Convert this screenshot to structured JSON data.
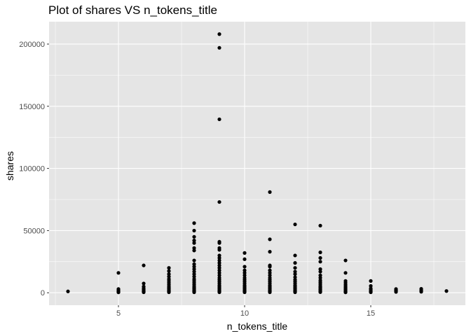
{
  "chart_data": {
    "type": "scatter",
    "title": "Plot of shares VS n_tokens_title",
    "xlabel": "n_tokens_title",
    "ylabel": "shares",
    "xlim": [
      2.25,
      18.75
    ],
    "ylim": [
      -10000,
      218000
    ],
    "x_ticks": [
      5,
      10,
      15
    ],
    "x_tick_labels": [
      "5",
      "10",
      "15"
    ],
    "x_minor_ticks": [
      2.5,
      7.5,
      12.5,
      17.5
    ],
    "y_ticks": [
      0,
      50000,
      100000,
      150000,
      200000
    ],
    "y_tick_labels": [
      "0",
      "50000",
      "100000",
      "150000",
      "200000"
    ],
    "y_minor_ticks": [
      25000,
      75000,
      125000,
      175000
    ],
    "grid": true,
    "legend": "none",
    "colors": {
      "panel": "#e5e5e5",
      "grid": "#ffffff",
      "point": "#000000"
    },
    "points": [
      [
        3,
        1100
      ],
      [
        5,
        16000
      ],
      [
        5,
        3000
      ],
      [
        5,
        2000
      ],
      [
        5,
        1200
      ],
      [
        5,
        800
      ],
      [
        5,
        300
      ],
      [
        6,
        22000
      ],
      [
        6,
        7500
      ],
      [
        6,
        5000
      ],
      [
        6,
        3500
      ],
      [
        6,
        2500
      ],
      [
        6,
        1800
      ],
      [
        6,
        1200
      ],
      [
        6,
        800
      ],
      [
        6,
        400
      ],
      [
        7,
        20000
      ],
      [
        7,
        17500
      ],
      [
        7,
        15000
      ],
      [
        7,
        13000
      ],
      [
        7,
        11000
      ],
      [
        7,
        9500
      ],
      [
        7,
        8000
      ],
      [
        7,
        6500
      ],
      [
        7,
        5000
      ],
      [
        7,
        4000
      ],
      [
        7,
        3000
      ],
      [
        7,
        2200
      ],
      [
        7,
        1500
      ],
      [
        7,
        900
      ],
      [
        7,
        400
      ],
      [
        8,
        56000
      ],
      [
        8,
        50000
      ],
      [
        8,
        45000
      ],
      [
        8,
        42000
      ],
      [
        8,
        40000
      ],
      [
        8,
        36000
      ],
      [
        8,
        34000
      ],
      [
        8,
        26000
      ],
      [
        8,
        23000
      ],
      [
        8,
        21000
      ],
      [
        8,
        19000
      ],
      [
        8,
        17000
      ],
      [
        8,
        15000
      ],
      [
        8,
        13000
      ],
      [
        8,
        11000
      ],
      [
        8,
        9500
      ],
      [
        8,
        8000
      ],
      [
        8,
        6500
      ],
      [
        8,
        5000
      ],
      [
        8,
        4000
      ],
      [
        8,
        3000
      ],
      [
        8,
        2200
      ],
      [
        8,
        1500
      ],
      [
        8,
        900
      ],
      [
        8,
        400
      ],
      [
        9,
        208000
      ],
      [
        9,
        197000
      ],
      [
        9,
        139500
      ],
      [
        9,
        73000
      ],
      [
        9,
        41000
      ],
      [
        9,
        40000
      ],
      [
        9,
        36000
      ],
      [
        9,
        34500
      ],
      [
        9,
        30000
      ],
      [
        9,
        28000
      ],
      [
        9,
        26000
      ],
      [
        9,
        24000
      ],
      [
        9,
        22000
      ],
      [
        9,
        20000
      ],
      [
        9,
        18000
      ],
      [
        9,
        16000
      ],
      [
        9,
        14000
      ],
      [
        9,
        12000
      ],
      [
        9,
        10500
      ],
      [
        9,
        9000
      ],
      [
        9,
        7500
      ],
      [
        9,
        6000
      ],
      [
        9,
        5000
      ],
      [
        9,
        4000
      ],
      [
        9,
        3000
      ],
      [
        9,
        2200
      ],
      [
        9,
        1500
      ],
      [
        9,
        900
      ],
      [
        9,
        400
      ],
      [
        10,
        32000
      ],
      [
        10,
        27000
      ],
      [
        10,
        21000
      ],
      [
        10,
        18000
      ],
      [
        10,
        16000
      ],
      [
        10,
        14000
      ],
      [
        10,
        12000
      ],
      [
        10,
        10500
      ],
      [
        10,
        9000
      ],
      [
        10,
        7500
      ],
      [
        10,
        6000
      ],
      [
        10,
        5000
      ],
      [
        10,
        4000
      ],
      [
        10,
        3000
      ],
      [
        10,
        2200
      ],
      [
        10,
        1500
      ],
      [
        10,
        900
      ],
      [
        10,
        400
      ],
      [
        11,
        81000
      ],
      [
        11,
        43000
      ],
      [
        11,
        33000
      ],
      [
        11,
        22000
      ],
      [
        11,
        21000
      ],
      [
        11,
        18000
      ],
      [
        11,
        16000
      ],
      [
        11,
        14000
      ],
      [
        11,
        12000
      ],
      [
        11,
        10500
      ],
      [
        11,
        9000
      ],
      [
        11,
        7500
      ],
      [
        11,
        6000
      ],
      [
        11,
        5000
      ],
      [
        11,
        4000
      ],
      [
        11,
        3000
      ],
      [
        11,
        2200
      ],
      [
        11,
        1500
      ],
      [
        11,
        900
      ],
      [
        11,
        400
      ],
      [
        12,
        55000
      ],
      [
        12,
        30000
      ],
      [
        12,
        24000
      ],
      [
        12,
        20000
      ],
      [
        12,
        17000
      ],
      [
        12,
        15000
      ],
      [
        12,
        12500
      ],
      [
        12,
        10500
      ],
      [
        12,
        9000
      ],
      [
        12,
        7500
      ],
      [
        12,
        6000
      ],
      [
        12,
        5000
      ],
      [
        12,
        4000
      ],
      [
        12,
        3000
      ],
      [
        12,
        2200
      ],
      [
        12,
        1500
      ],
      [
        12,
        900
      ],
      [
        12,
        400
      ],
      [
        13,
        54000
      ],
      [
        13,
        32500
      ],
      [
        13,
        28000
      ],
      [
        13,
        25000
      ],
      [
        13,
        19000
      ],
      [
        13,
        17000
      ],
      [
        13,
        14000
      ],
      [
        13,
        12000
      ],
      [
        13,
        10000
      ],
      [
        13,
        8500
      ],
      [
        13,
        7000
      ],
      [
        13,
        5500
      ],
      [
        13,
        4500
      ],
      [
        13,
        3500
      ],
      [
        13,
        2600
      ],
      [
        13,
        1800
      ],
      [
        13,
        1100
      ],
      [
        13,
        500
      ],
      [
        14,
        26000
      ],
      [
        14,
        16000
      ],
      [
        14,
        9500
      ],
      [
        14,
        8000
      ],
      [
        14,
        6500
      ],
      [
        14,
        5200
      ],
      [
        14,
        4200
      ],
      [
        14,
        3300
      ],
      [
        14,
        2500
      ],
      [
        14,
        1800
      ],
      [
        14,
        1200
      ],
      [
        14,
        700
      ],
      [
        14,
        300
      ],
      [
        15,
        9500
      ],
      [
        15,
        5500
      ],
      [
        15,
        3500
      ],
      [
        15,
        2500
      ],
      [
        15,
        1600
      ],
      [
        15,
        900
      ],
      [
        15,
        400
      ],
      [
        16,
        3000
      ],
      [
        16,
        2000
      ],
      [
        16,
        1300
      ],
      [
        16,
        700
      ],
      [
        17,
        3200
      ],
      [
        17,
        2200
      ],
      [
        17,
        1400
      ],
      [
        17,
        800
      ],
      [
        18,
        1400
      ]
    ]
  }
}
